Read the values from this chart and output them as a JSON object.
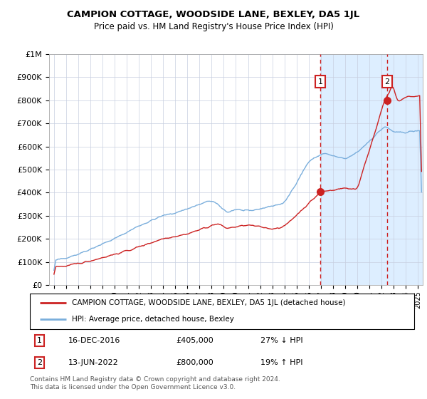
{
  "title": "CAMPION COTTAGE, WOODSIDE LANE, BEXLEY, DA5 1JL",
  "subtitle": "Price paid vs. HM Land Registry's House Price Index (HPI)",
  "legend_line1": "CAMPION COTTAGE, WOODSIDE LANE, BEXLEY, DA5 1JL (detached house)",
  "legend_line2": "HPI: Average price, detached house, Bexley",
  "annotation1_date": "16-DEC-2016",
  "annotation1_price": "£405,000",
  "annotation1_hpi": "27% ↓ HPI",
  "annotation2_date": "13-JUN-2022",
  "annotation2_price": "£800,000",
  "annotation2_hpi": "19% ↑ HPI",
  "footer": "Contains HM Land Registry data © Crown copyright and database right 2024.\nThis data is licensed under the Open Government Licence v3.0.",
  "hpi_color": "#7aaedc",
  "price_color": "#cc2222",
  "dot_color": "#cc2222",
  "bg_highlight_color": "#ddeeff",
  "vline_color": "#cc2222",
  "grid_color": "#c8cfe0",
  "ylim": [
    0,
    1000000
  ],
  "yticks": [
    0,
    100000,
    200000,
    300000,
    400000,
    500000,
    600000,
    700000,
    800000,
    900000,
    1000000
  ],
  "sale1_year": 2016.96,
  "sale2_year": 2022.45,
  "sale1_price": 405000,
  "sale2_price": 800000,
  "xmin": 1994.6,
  "xmax": 2025.4
}
